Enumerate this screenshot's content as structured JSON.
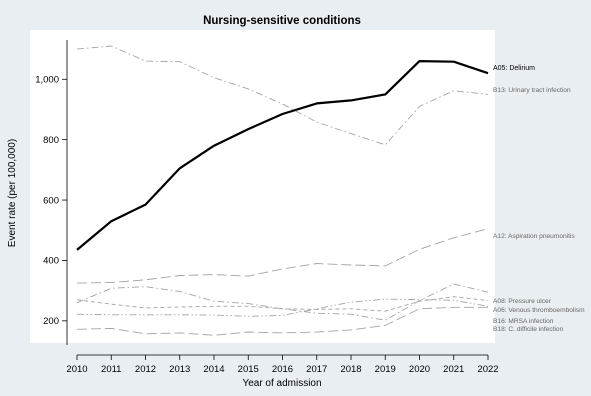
{
  "chart_data": {
    "type": "line",
    "title": "Nursing-sensitive conditions",
    "xlabel": "Year of admission",
    "ylabel": "Event rate (per 100,000)",
    "x": [
      2010,
      2011,
      2012,
      2013,
      2014,
      2015,
      2016,
      2017,
      2018,
      2019,
      2020,
      2021,
      2022
    ],
    "xlim": [
      2010,
      2022
    ],
    "ylim": [
      120,
      1130
    ],
    "yticks": [
      200,
      400,
      600,
      800,
      1000
    ],
    "ytick_labels": [
      "200",
      "400",
      "600",
      "800",
      "1,000"
    ],
    "grid": false,
    "legend": "direct labels at right end of each line",
    "series": [
      {
        "name": "A05: Delirium",
        "style": "solid-bold",
        "color": "#000000",
        "values": [
          435,
          530,
          585,
          705,
          780,
          835,
          885,
          920,
          930,
          950,
          1060,
          1058,
          1020
        ]
      },
      {
        "name": "B13: Urinary tract infection",
        "style": "dash-dot",
        "color": "#9a9a9a",
        "values": [
          1100,
          1110,
          1060,
          1058,
          1005,
          968,
          918,
          858,
          820,
          783,
          910,
          962,
          950
        ]
      },
      {
        "name": "A12: Aspiration pneumonitis",
        "style": "long-dash",
        "color": "#9a9a9a",
        "values": [
          325,
          327,
          336,
          350,
          353,
          348,
          372,
          390,
          385,
          382,
          437,
          475,
          505
        ]
      },
      {
        "name": "A08: Pressure ulcer",
        "style": "dash-dot",
        "color": "#9a9a9a",
        "values": [
          260,
          308,
          313,
          297,
          265,
          257,
          240,
          225,
          222,
          202,
          267,
          322,
          295
        ]
      },
      {
        "name": "A06: Venous thromboembolism",
        "style": "dashed",
        "color": "#9a9a9a",
        "values": [
          270,
          255,
          243,
          246,
          248,
          248,
          240,
          238,
          240,
          232,
          265,
          280,
          267
        ]
      },
      {
        "name": "B16: MRSA infection",
        "style": "dash-dot-dot",
        "color": "#9a9a9a",
        "values": [
          222,
          220,
          220,
          220,
          219,
          215,
          218,
          240,
          262,
          272,
          270,
          268,
          248
        ]
      },
      {
        "name": "B18: C. difficile infection",
        "style": "long-dash",
        "color": "#9a9a9a",
        "values": [
          172,
          175,
          157,
          160,
          152,
          163,
          160,
          163,
          170,
          185,
          240,
          245,
          245
        ]
      }
    ]
  }
}
